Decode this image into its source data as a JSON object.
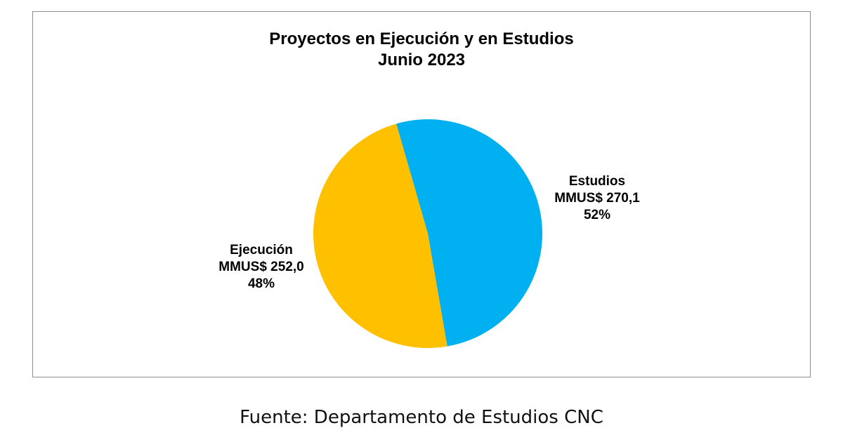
{
  "chart_data": {
    "type": "pie",
    "title": "Proyectos en Ejecución y en Estudios",
    "subtitle": "Junio 2023",
    "slices": [
      {
        "name": "Estudios",
        "value": 270.1,
        "value_label": "MMUS$ 270,1",
        "percent_label": "52%",
        "color": "#00B0F0"
      },
      {
        "name": "Ejecución",
        "value": 252.0,
        "value_label": "MMUS$ 252,0",
        "percent_label": "48%",
        "color": "#FFC000"
      }
    ]
  },
  "source": "Fuente: Departamento de Estudios CNC"
}
